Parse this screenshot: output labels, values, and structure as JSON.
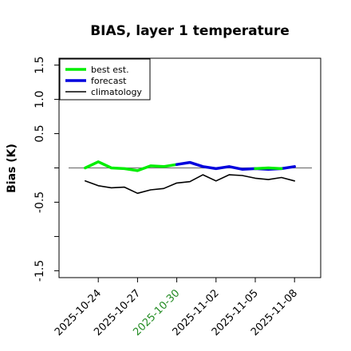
{
  "chart_data": {
    "type": "line",
    "title": "BIAS, layer 1 temperature",
    "xlabel": "",
    "ylabel": "Bias (K)",
    "ylim": [
      -1.6,
      1.6
    ],
    "xlim": [
      "2025-10-21",
      "2025-11-10"
    ],
    "yticks": [
      -1.5,
      -1.0,
      -0.5,
      0.0,
      0.5,
      1.0,
      1.5
    ],
    "ytick_labels": [
      "-1.5",
      "",
      "-0.5",
      "",
      "0.5",
      "1.0",
      "1.5"
    ],
    "xticks": [
      "2025-10-24",
      "2025-10-27",
      "2025-10-30",
      "2025-11-02",
      "2025-11-05",
      "2025-11-08"
    ],
    "xtick_colors": [
      "#000000",
      "#000000",
      "#228b22",
      "#000000",
      "#000000",
      "#000000"
    ],
    "reference_line": 0.0,
    "grid": false,
    "legend_position": "top-left",
    "series": [
      {
        "name": "best est.",
        "color": "#00ee00",
        "x": [
          "2025-10-23",
          "2025-10-24",
          "2025-10-25",
          "2025-10-26",
          "2025-10-27",
          "2025-10-28",
          "2025-10-29",
          "2025-10-30"
        ],
        "y": [
          0.0,
          0.09,
          0.0,
          -0.01,
          -0.04,
          0.03,
          0.02,
          0.05
        ]
      },
      {
        "name": "forecast",
        "color": "#0000dd",
        "x": [
          "2025-10-30",
          "2025-10-31",
          "2025-11-01",
          "2025-11-02",
          "2025-11-03",
          "2025-11-04",
          "2025-11-05",
          "2025-11-06",
          "2025-11-07",
          "2025-11-08"
        ],
        "y": [
          0.05,
          0.08,
          0.02,
          -0.01,
          0.02,
          -0.02,
          -0.01,
          -0.02,
          -0.01,
          0.02
        ]
      },
      {
        "name": "best est.",
        "color": "#00ee00",
        "x": [
          "2025-11-05",
          "2025-11-06",
          "2025-11-07"
        ],
        "y": [
          -0.01,
          0.0,
          -0.01
        ]
      },
      {
        "name": "climatology",
        "color": "#000000",
        "x": [
          "2025-10-23",
          "2025-10-24",
          "2025-10-25",
          "2025-10-26",
          "2025-10-27",
          "2025-10-28",
          "2025-10-29",
          "2025-10-30",
          "2025-10-31",
          "2025-11-01",
          "2025-11-02",
          "2025-11-03",
          "2025-11-04",
          "2025-11-05",
          "2025-11-06",
          "2025-11-07",
          "2025-11-08"
        ],
        "y": [
          -0.19,
          -0.26,
          -0.29,
          -0.28,
          -0.37,
          -0.32,
          -0.3,
          -0.22,
          -0.2,
          -0.1,
          -0.19,
          -0.1,
          -0.11,
          -0.15,
          -0.17,
          -0.14,
          -0.19
        ]
      }
    ],
    "legend": [
      {
        "label": "best est.",
        "color": "#00ee00",
        "width": 3.5
      },
      {
        "label": "forecast",
        "color": "#0000dd",
        "width": 3.5
      },
      {
        "label": "climatology",
        "color": "#000000",
        "width": 1.5
      }
    ]
  }
}
